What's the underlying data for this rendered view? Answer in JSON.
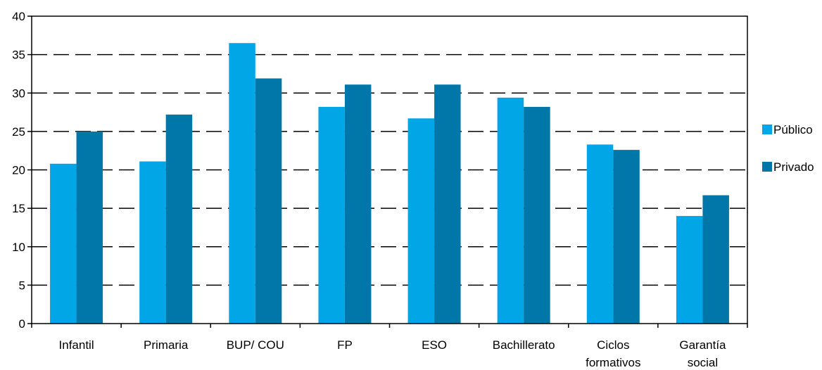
{
  "chart_data": {
    "type": "bar",
    "title": "",
    "xlabel": "",
    "ylabel": "",
    "ylim": [
      0,
      40
    ],
    "yticks": [
      0,
      5,
      10,
      15,
      20,
      25,
      30,
      35,
      40
    ],
    "grid": "horizontal-dashed",
    "legend_position": "right",
    "categories": [
      [
        "Infantil"
      ],
      [
        "Primaria"
      ],
      [
        "BUP/ COU"
      ],
      [
        "FP"
      ],
      [
        "ESO"
      ],
      [
        "Bachillerato"
      ],
      [
        "Ciclos",
        "formativos"
      ],
      [
        "Garantía",
        "social"
      ]
    ],
    "series": [
      {
        "name": "Público",
        "color": "#00a6e6",
        "values": [
          20.8,
          21.1,
          36.5,
          28.2,
          26.7,
          29.4,
          23.3,
          14.0
        ]
      },
      {
        "name": "Privado",
        "color": "#0077a8",
        "values": [
          25.0,
          27.2,
          31.9,
          31.1,
          31.1,
          28.2,
          22.6,
          16.7
        ]
      }
    ]
  }
}
